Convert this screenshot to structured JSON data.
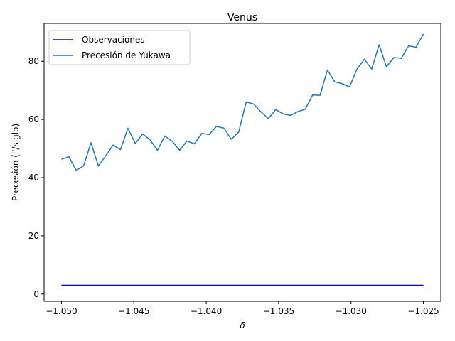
{
  "chart_data": {
    "type": "line",
    "title": "Venus",
    "xlabel": "δ",
    "ylabel": "Precesión (''/siglo)",
    "xlim": [
      -1.0512,
      -1.0238
    ],
    "ylim": [
      -2.5,
      93
    ],
    "x_ticks": [
      -1.05,
      -1.045,
      -1.04,
      -1.035,
      -1.03,
      -1.025
    ],
    "x_tick_labels": [
      "−1.050",
      "−1.045",
      "−1.040",
      "−1.035",
      "−1.030",
      "−1.025"
    ],
    "y_ticks": [
      0,
      20,
      40,
      60,
      80
    ],
    "y_tick_labels": [
      "0",
      "20",
      "40",
      "60",
      "80"
    ],
    "grid": false,
    "legend_position": "top-left",
    "series": [
      {
        "name": "Observaciones",
        "color": "#0000cc",
        "x": [
          -1.05,
          -1.025
        ],
        "y": [
          3.0,
          3.0
        ]
      },
      {
        "name": "Precesión de Yukawa",
        "color": "#1f77b4",
        "x": [
          -1.05,
          -1.04949,
          -1.04898,
          -1.04847,
          -1.04796,
          -1.04745,
          -1.04694,
          -1.04643,
          -1.04592,
          -1.04541,
          -1.0449,
          -1.04439,
          -1.04388,
          -1.04337,
          -1.04286,
          -1.04235,
          -1.04184,
          -1.04133,
          -1.04082,
          -1.04031,
          -1.0398,
          -1.03929,
          -1.03878,
          -1.03827,
          -1.03776,
          -1.03724,
          -1.03673,
          -1.03622,
          -1.03571,
          -1.0352,
          -1.03469,
          -1.03418,
          -1.03367,
          -1.03316,
          -1.03265,
          -1.03214,
          -1.03163,
          -1.03112,
          -1.03061,
          -1.0301,
          -1.02959,
          -1.02908,
          -1.02857,
          -1.02806,
          -1.02755,
          -1.02704,
          -1.02653,
          -1.02602,
          -1.02551,
          -1.025
        ],
        "y": [
          46.3,
          47.2,
          42.5,
          44.0,
          52.0,
          44.0,
          47.5,
          51.2,
          49.6,
          57.0,
          51.7,
          55.0,
          53.0,
          49.4,
          54.3,
          52.5,
          49.4,
          52.6,
          51.6,
          55.2,
          54.8,
          57.6,
          57.0,
          53.2,
          55.6,
          66.0,
          65.3,
          62.6,
          60.3,
          63.4,
          61.9,
          61.4,
          62.7,
          63.5,
          68.4,
          68.3,
          77.0,
          72.9,
          72.3,
          71.2,
          77.3,
          80.7,
          77.3,
          85.7,
          78.1,
          81.3,
          81.0,
          85.3,
          84.8,
          89.4
        ]
      }
    ]
  }
}
